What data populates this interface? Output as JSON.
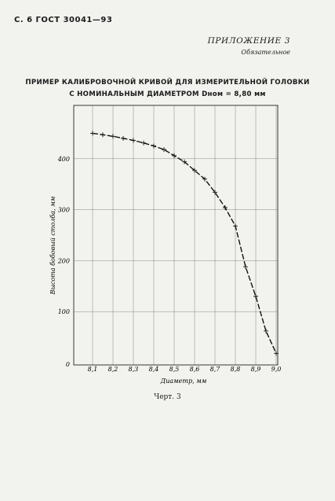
{
  "header": {
    "page_ref": "С. 6  ГОСТ  30041—93"
  },
  "appendix": {
    "title": "ПРИЛОЖЕНИЕ 3",
    "status": "Обязательное"
  },
  "chart_title": {
    "line1": "ПРИМЕР КАЛИБРОВОЧНОЙ КРИВОЙ ДЛЯ ИЗМЕРИТЕЛЬНОЙ ГОЛОВКИ",
    "line2": "С НОМИНАЛЬНЫМ ДИАМЕТРОМ Dном = 8,80 мм"
  },
  "chart_data": {
    "type": "line",
    "title": "ПРИМЕР КАЛИБРОВОЧНОЙ КРИВОЙ ДЛЯ ИЗМЕРИТЕЛЬНОЙ ГОЛОВКИ С НОМИНАЛЬНЫМ ДИАМЕТРОМ Dном = 8,80 мм",
    "xlabel": "Диаметр, мм",
    "ylabel": "Высота бобовый столба, мм",
    "xlim": [
      8.1,
      9.0
    ],
    "ylim": [
      0,
      450
    ],
    "x_ticks": [
      "8,1",
      "8,2",
      "8,3",
      "8,4",
      "8,5",
      "8,6",
      "8,7",
      "8,8",
      "8,9",
      "9,0"
    ],
    "y_ticks": [
      "100",
      "200",
      "300",
      "400"
    ],
    "y_tick_values": [
      100,
      200,
      300,
      400
    ],
    "grid": true,
    "series": [
      {
        "x": [
          8.1,
          8.15,
          8.2,
          8.25,
          8.3,
          8.35,
          8.4,
          8.45,
          8.5,
          8.55,
          8.6,
          8.65,
          8.7,
          8.75,
          8.8,
          8.85,
          8.9,
          8.95,
          9.0
        ],
        "y": [
          450,
          447,
          444,
          440,
          436,
          431,
          425,
          418,
          406,
          394,
          377,
          360,
          334,
          304,
          268,
          188,
          130,
          62,
          18
        ]
      }
    ]
  },
  "figure_caption": "Черт. 3"
}
